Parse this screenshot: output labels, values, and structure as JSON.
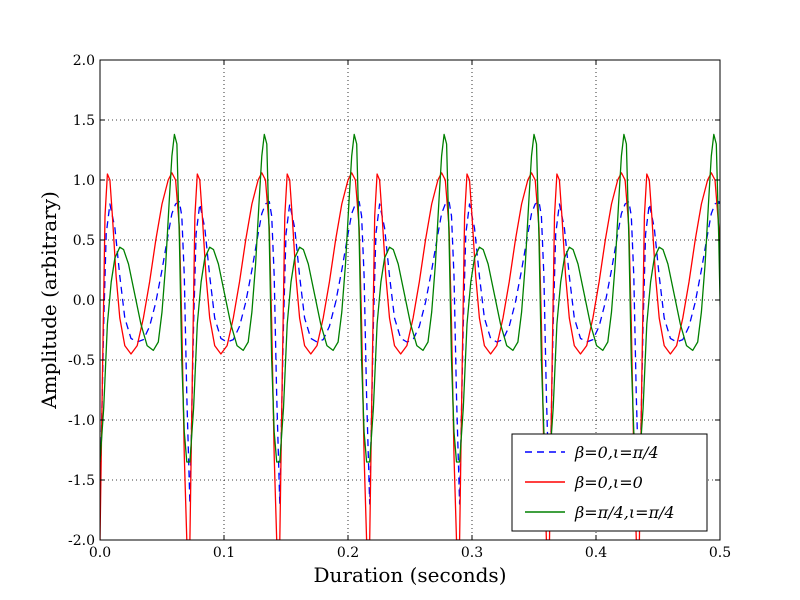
{
  "chart_data": {
    "type": "line",
    "title": "",
    "xlabel": "Duration (seconds)",
    "ylabel": "Amplitude (arbitrary)",
    "xlim": [
      0.0,
      0.5
    ],
    "ylim": [
      -2.0,
      2.0
    ],
    "xticks": [
      "0.0",
      "0.1",
      "0.2",
      "0.3",
      "0.4",
      "0.5"
    ],
    "xtick_values": [
      0.0,
      0.1,
      0.2,
      0.3,
      0.4,
      0.5
    ],
    "yticks": [
      "-2.0",
      "-1.5",
      "-1.0",
      "-0.5",
      "0.0",
      "0.5",
      "1.0",
      "1.5",
      "2.0"
    ],
    "ytick_values": [
      -2.0,
      -1.5,
      -1.0,
      -0.5,
      0.0,
      0.5,
      1.0,
      1.5,
      2.0
    ],
    "grid": true,
    "legend_position": "bottom-right",
    "period_seconds": 0.0725,
    "series": [
      {
        "name": "β=0,ι=π/4",
        "color": "#0000ff",
        "style": "dashed",
        "cycle_x": [
          0.0,
          0.003,
          0.005,
          0.008,
          0.012,
          0.016,
          0.02,
          0.025,
          0.03,
          0.035,
          0.04,
          0.045,
          0.05,
          0.055,
          0.058,
          0.061,
          0.064,
          0.066,
          0.068,
          0.07,
          0.0725
        ],
        "cycle_y": [
          -1.7,
          -0.2,
          0.55,
          0.8,
          0.6,
          0.2,
          -0.15,
          -0.32,
          -0.35,
          -0.33,
          -0.22,
          -0.02,
          0.25,
          0.55,
          0.72,
          0.8,
          0.82,
          0.7,
          0.2,
          -0.8,
          -1.7
        ]
      },
      {
        "name": "β=0,ι=0",
        "color": "#ff0000",
        "style": "solid",
        "cycle_x": [
          0.0,
          0.002,
          0.004,
          0.006,
          0.008,
          0.01,
          0.013,
          0.016,
          0.02,
          0.025,
          0.03,
          0.035,
          0.04,
          0.045,
          0.05,
          0.055,
          0.058,
          0.061,
          0.064,
          0.066,
          0.068,
          0.07,
          0.0725
        ],
        "cycle_y": [
          -2.0,
          -0.6,
          0.7,
          1.05,
          1.0,
          0.7,
          0.2,
          -0.15,
          -0.38,
          -0.45,
          -0.38,
          -0.15,
          0.15,
          0.5,
          0.8,
          1.0,
          1.06,
          1.0,
          0.6,
          -0.2,
          -1.3,
          -2.0,
          -2.0
        ]
      },
      {
        "name": "β=π/4,ι=π/4",
        "color": "#008000",
        "style": "solid",
        "cycle_x": [
          0.0,
          0.003,
          0.006,
          0.009,
          0.012,
          0.016,
          0.019,
          0.023,
          0.028,
          0.033,
          0.038,
          0.043,
          0.047,
          0.05,
          0.053,
          0.056,
          0.058,
          0.06,
          0.062,
          0.064,
          0.066,
          0.068,
          0.07,
          0.0725
        ],
        "cycle_y": [
          -1.35,
          -0.9,
          -0.2,
          0.15,
          0.35,
          0.44,
          0.42,
          0.3,
          0.05,
          -0.2,
          -0.38,
          -0.42,
          -0.35,
          -0.1,
          0.3,
          0.85,
          1.2,
          1.38,
          1.3,
          0.5,
          -0.5,
          -1.1,
          -1.35,
          -1.35
        ]
      }
    ]
  }
}
